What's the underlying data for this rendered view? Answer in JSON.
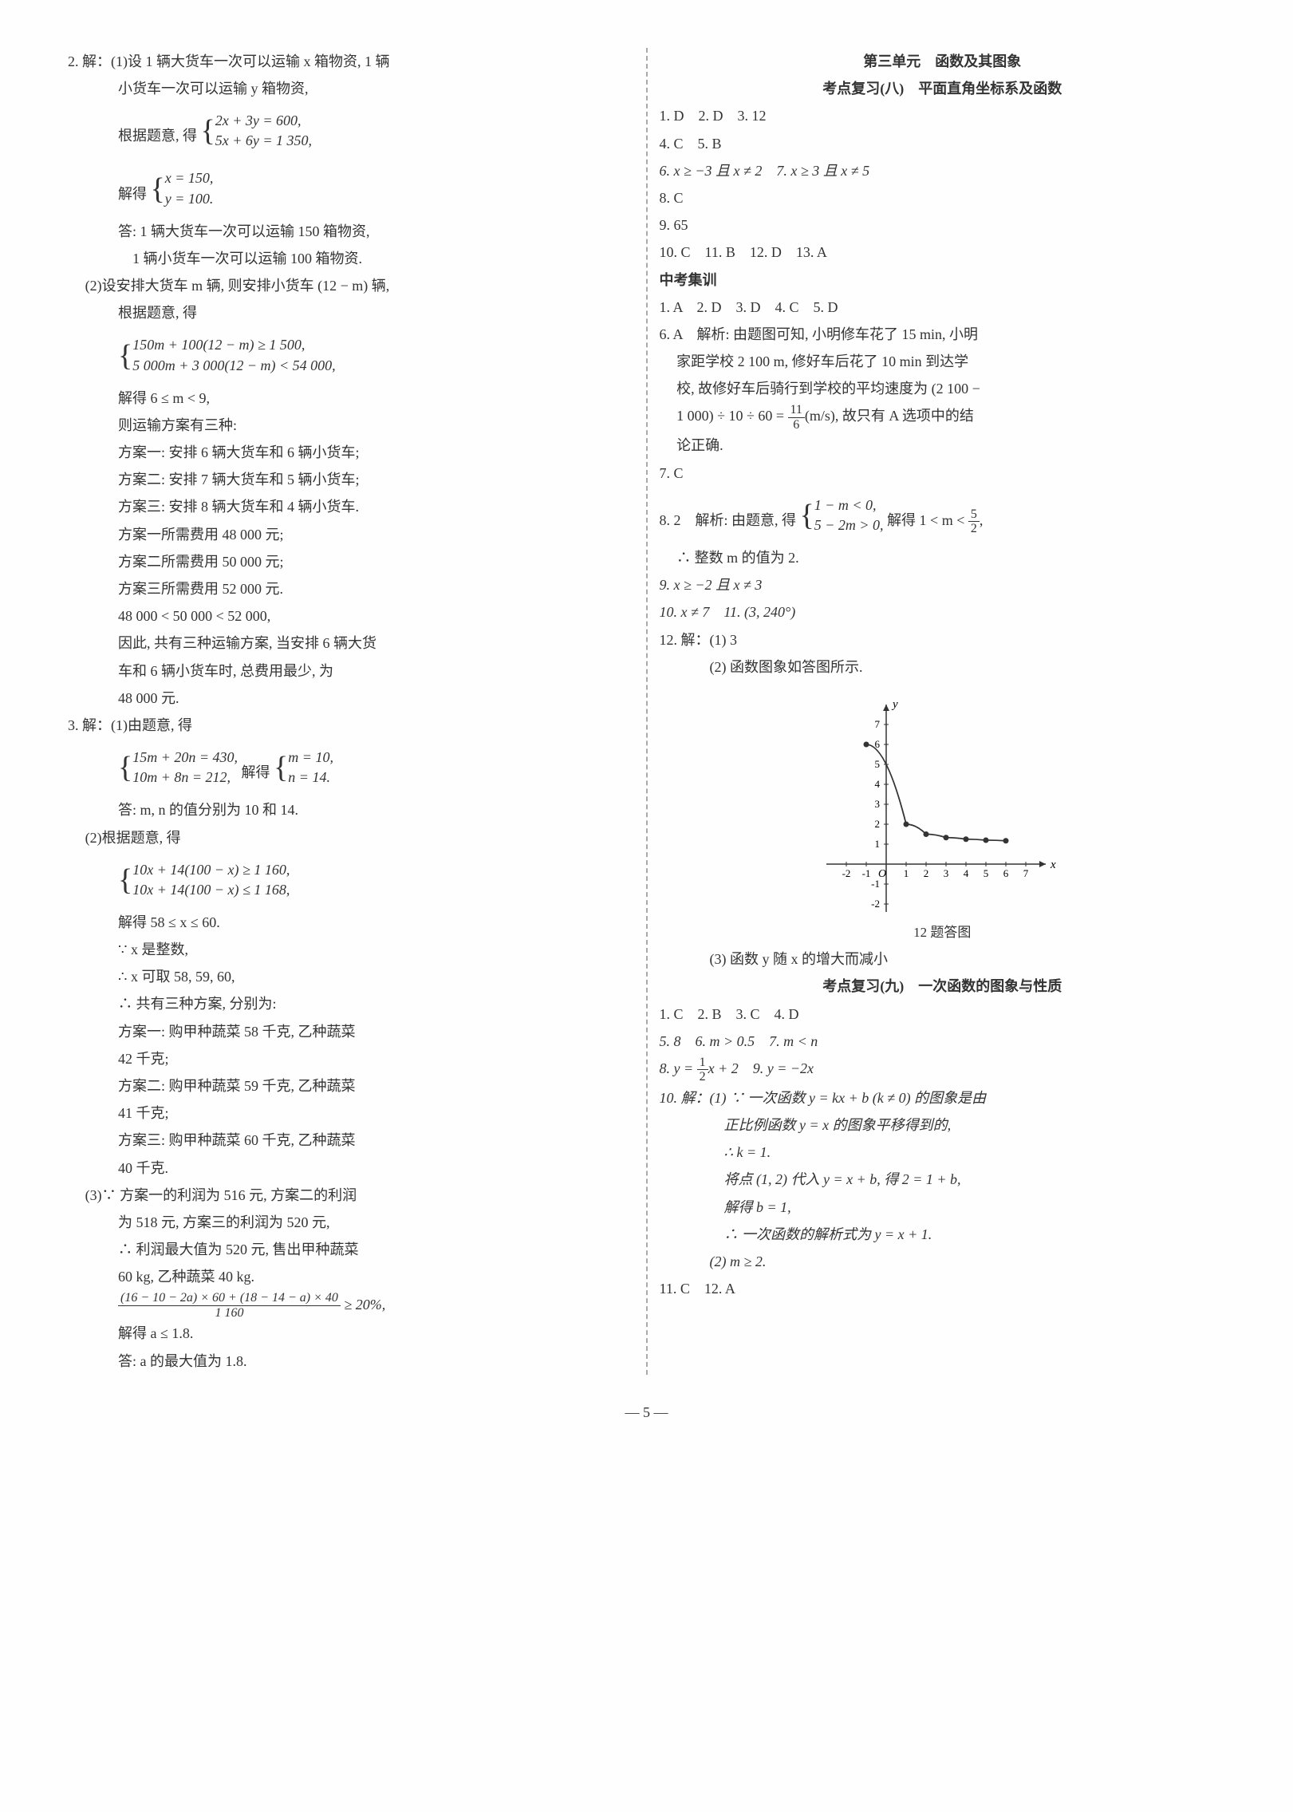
{
  "left": {
    "q2": {
      "label": "2. 解：",
      "p1_label": "(1)",
      "p1_l1": "设 1 辆大货车一次可以运输 x 箱物资, 1 辆",
      "p1_l2": "小货车一次可以运输 y 箱物资,",
      "p1_l3": "根据题意, 得",
      "p1_eq1a": "2x + 3y = 600,",
      "p1_eq1b": "5x + 6y = 1 350,",
      "p1_l4": "解得",
      "p1_eq2a": "x = 150,",
      "p1_eq2b": "y = 100.",
      "p1_l5": "答: 1 辆大货车一次可以运输 150 箱物资,",
      "p1_l6": "1 辆小货车一次可以运输 100 箱物资.",
      "p2_label": "(2)",
      "p2_l1": "设安排大货车 m 辆, 则安排小货车 (12 − m) 辆,",
      "p2_l2": "根据题意, 得",
      "p2_eq1a": "150m + 100(12 − m) ≥ 1 500,",
      "p2_eq1b": "5 000m + 3 000(12 − m) < 54 000,",
      "p2_l3": "解得 6 ≤ m < 9,",
      "p2_l4": "则运输方案有三种:",
      "p2_l5": "方案一: 安排 6 辆大货车和 6 辆小货车;",
      "p2_l6": "方案二: 安排 7 辆大货车和 5 辆小货车;",
      "p2_l7": "方案三: 安排 8 辆大货车和 4 辆小货车.",
      "p2_l8": "方案一所需费用 48 000 元;",
      "p2_l9": "方案二所需费用 50 000 元;",
      "p2_l10": "方案三所需费用 52 000 元.",
      "p2_l11": "48 000 < 50 000 < 52 000,",
      "p2_l12": "因此, 共有三种运输方案, 当安排 6 辆大货",
      "p2_l13": "车和 6 辆小货车时, 总费用最少, 为",
      "p2_l14": "48 000 元."
    },
    "q3": {
      "label": "3. 解：",
      "p1_label": "(1)",
      "p1_l1": "由题意, 得",
      "p1_eq1a": "15m + 20n = 430,",
      "p1_eq1b": "10m + 8n = 212,",
      "p1_l2": "解得",
      "p1_eq2a": "m = 10,",
      "p1_eq2b": "n = 14.",
      "p1_l3": "答: m, n 的值分别为 10 和 14.",
      "p2_label": "(2)",
      "p2_l1": "根据题意, 得",
      "p2_eq1a": "10x + 14(100 − x) ≥ 1 160,",
      "p2_eq1b": "10x + 14(100 − x) ≤ 1 168,",
      "p2_l2": "解得 58 ≤ x ≤ 60.",
      "p2_l3": "∵ x 是整数,",
      "p2_l4": "∴ x 可取 58, 59, 60,",
      "p2_l5": "∴ 共有三种方案, 分别为:",
      "p2_l6": "方案一: 购甲种蔬菜 58 千克, 乙种蔬菜",
      "p2_l7": "42 千克;",
      "p2_l8": "方案二: 购甲种蔬菜 59 千克, 乙种蔬菜",
      "p2_l9": "41 千克;",
      "p2_l10": "方案三: 购甲种蔬菜 60 千克, 乙种蔬菜",
      "p2_l11": "40 千克.",
      "p3_label": "(3)",
      "p3_l1": "∵ 方案一的利润为 516 元, 方案二的利润",
      "p3_l2": "为 518 元, 方案三的利润为 520 元,",
      "p3_l3": "∴ 利润最大值为 520 元, 售出甲种蔬菜",
      "p3_l4": "60 kg, 乙种蔬菜 40 kg.",
      "p3_frac_num": "(16 − 10 − 2a) × 60 + (18 − 14 − a) × 40",
      "p3_frac_den": "1 160",
      "p3_frac_after": " ≥ 20%,",
      "p3_l6": "解得 a ≤ 1.8.",
      "p3_l7": "答: a 的最大值为 1.8."
    }
  },
  "right": {
    "unit_title": "第三单元　函数及其图象",
    "section8_title": "考点复习(八)　平面直角坐标系及函数",
    "s8_l1": "1. D　2. D　3. 12",
    "s8_l2": "4. C　5. B",
    "s8_l3": "6. x ≥ −3 且 x ≠ 2　7. x ≥ 3 且 x ≠ 5",
    "s8_l4": "8. C",
    "s8_l5": "9. 65",
    "s8_l6": "10. C　11. B　12. D　13. A",
    "zk_title": "中考集训",
    "zk_l1": "1. A　2. D　3. D　4. C　5. D",
    "zk_l2a": "6. A　解析: 由题图可知, 小明修车花了 15 min, 小明",
    "zk_l2b": "家距学校 2 100 m, 修好车后花了 10 min 到达学",
    "zk_l2c": "校, 故修好车后骑行到学校的平均速度为 (2 100 −",
    "zk_l2d_a": "1 000) ÷ 10 ÷ 60 = ",
    "zk_l2d_num": "11",
    "zk_l2d_den": "6",
    "zk_l2d_b": "(m/s), 故只有 A 选项中的结",
    "zk_l2e": "论正确.",
    "zk_l3": "7. C",
    "zk_l4a": "8. 2　解析: 由题意, 得",
    "zk_l4_eq1": "1 − m < 0,",
    "zk_l4_eq2": "5 − 2m > 0,",
    "zk_l4b": " 解得 1 < m < ",
    "zk_l4_num": "5",
    "zk_l4_den": "2",
    "zk_l4c": ",",
    "zk_l5": "∴ 整数 m 的值为 2.",
    "zk_l6": "9. x ≥ −2 且 x ≠ 3",
    "zk_l7": "10. x ≠ 7　11. (3, 240°)",
    "zk_l8": "12. 解：(1) 3",
    "zk_l9": "(2) 函数图象如答图所示.",
    "graph": {
      "xlabel": "x",
      "ylabel": "y",
      "x_ticks": [
        -2,
        -1,
        1,
        2,
        3,
        4,
        5,
        6,
        7
      ],
      "y_ticks": [
        -2,
        -1,
        1,
        2,
        3,
        4,
        5,
        6,
        7
      ],
      "y_label_pos": "top",
      "x_label_pos": "right",
      "points": [
        {
          "x": -1,
          "y": 6
        },
        {
          "x": 1,
          "y": 2
        },
        {
          "x": 2,
          "y": 1.5
        },
        {
          "x": 3,
          "y": 1.33
        },
        {
          "x": 4,
          "y": 1.25
        },
        {
          "x": 5,
          "y": 1.2
        },
        {
          "x": 6,
          "y": 1.17
        }
      ],
      "curve_color": "#333333",
      "point_color": "#333333",
      "axis_color": "#333333",
      "caption": "12 题答图"
    },
    "zk_l10": "(3) 函数 y 随 x 的增大而减小",
    "section9_title": "考点复习(九)　一次函数的图象与性质",
    "s9_l1": "1. C　2. B　3. C　4. D",
    "s9_l2": "5. 8　6. m > 0.5　7. m < n",
    "s9_l3a": "8. y = ",
    "s9_l3_num": "1",
    "s9_l3_den": "2",
    "s9_l3b": "x + 2　9. y = −2x",
    "s9_l4": "10. 解：(1) ∵ 一次函数 y = kx + b (k ≠ 0) 的图象是由",
    "s9_l5": "正比例函数 y = x 的图象平移得到的,",
    "s9_l6": "∴ k = 1.",
    "s9_l7": "将点 (1, 2) 代入 y = x + b, 得 2 = 1 + b,",
    "s9_l8": "解得 b = 1,",
    "s9_l9": "∴ 一次函数的解析式为 y = x + 1.",
    "s9_l10": "(2) m ≥ 2.",
    "s9_l11": "11. C　12. A"
  },
  "page_num": "— 5 —"
}
